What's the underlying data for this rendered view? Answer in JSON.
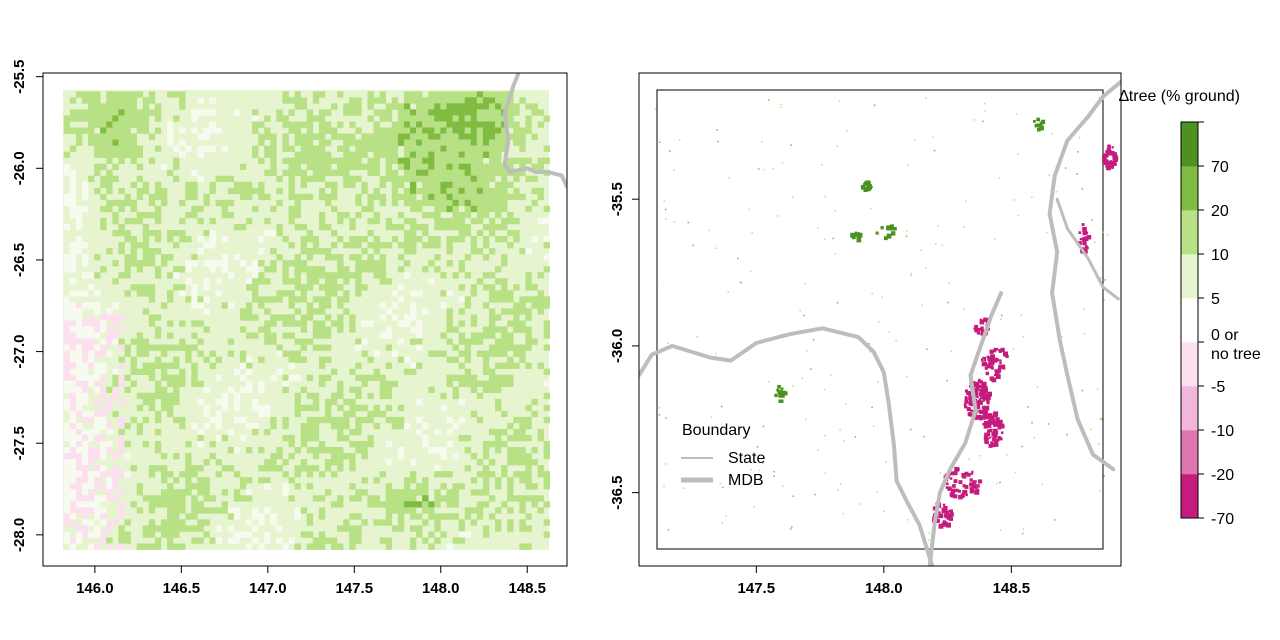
{
  "chart_data": [
    {
      "type": "heatmap",
      "title": "",
      "xlabel": "",
      "ylabel": "",
      "xlim": [
        145.7,
        148.73
      ],
      "ylim": [
        -28.17,
        -25.48
      ],
      "x_ticks": [
        146.0,
        146.5,
        147.0,
        147.5,
        148.0,
        148.5
      ],
      "x_tick_labels": [
        "146.0",
        "146.5",
        "147.0",
        "147.5",
        "148.0",
        "148.5"
      ],
      "y_ticks": [
        -25.5,
        -26.0,
        -26.5,
        -27.0,
        -27.5,
        -28.0
      ],
      "y_tick_labels": [
        "-25.5",
        "-26.0",
        "-26.5",
        "-27.0",
        "-27.5",
        "-28.0"
      ],
      "raster_extent": {
        "x": [
          145.82,
          148.63
        ],
        "y": [
          -28.08,
          -25.58
        ]
      },
      "dominant_classes": [
        "0 or no tree",
        "0 to 5",
        "5 to 10",
        "10 to 20",
        "20 to 70"
      ],
      "boundaries": {
        "State": [
          [
            148.45,
            -25.48
          ],
          [
            148.42,
            -25.55
          ],
          [
            148.37,
            -25.7
          ],
          [
            148.39,
            -25.85
          ],
          [
            148.37,
            -25.98
          ],
          [
            148.4,
            -26.02
          ],
          [
            148.45,
            -26.01
          ],
          [
            148.5,
            -26.0
          ],
          [
            148.55,
            -26.02
          ],
          [
            148.62,
            -26.02
          ],
          [
            148.7,
            -26.04
          ],
          [
            148.73,
            -26.1
          ]
        ]
      }
    },
    {
      "type": "heatmap",
      "title": "",
      "xlabel": "",
      "ylabel": "",
      "xlim": [
        147.04,
        148.93
      ],
      "ylim": [
        -36.75,
        -35.07
      ],
      "x_ticks": [
        147.5,
        148.0,
        148.5
      ],
      "x_tick_labels": [
        "147.5",
        "148.0",
        "148.5"
      ],
      "y_ticks": [
        -35.5,
        -36.0,
        -36.5
      ],
      "y_tick_labels": [
        "-35.5",
        "-36.0",
        "-36.5"
      ],
      "raster_extent": {
        "x": [
          147.1,
          148.88
        ],
        "y": [
          -36.66,
          -35.15
        ]
      },
      "boundaries": {
        "State": [
          [
            147.04,
            -36.14
          ],
          [
            147.1,
            -36.07
          ],
          [
            147.2,
            -36.03
          ],
          [
            147.3,
            -36.05
          ],
          [
            147.4,
            -36.05
          ],
          [
            147.5,
            -36.0
          ],
          [
            147.6,
            -35.99
          ],
          [
            147.7,
            -35.95
          ],
          [
            147.8,
            -35.93
          ],
          [
            147.9,
            -35.97
          ],
          [
            147.99,
            -36.04
          ],
          [
            148.0,
            -36.15
          ],
          [
            148.04,
            -36.27
          ],
          [
            148.05,
            -36.4
          ],
          [
            148.09,
            -36.5
          ],
          [
            148.12,
            -36.57
          ],
          [
            148.18,
            -36.65
          ],
          [
            148.2,
            -36.75
          ]
        ],
        "MDB": [
          [
            147.04,
            -36.1
          ],
          [
            147.09,
            -36.03
          ],
          [
            147.17,
            -36.0
          ],
          [
            147.32,
            -36.04
          ],
          [
            147.4,
            -36.05
          ],
          [
            147.5,
            -35.99
          ],
          [
            147.63,
            -35.96
          ],
          [
            147.76,
            -35.94
          ],
          [
            147.9,
            -35.97
          ],
          [
            147.96,
            -36.02
          ],
          [
            148.0,
            -36.09
          ],
          [
            148.02,
            -36.2
          ],
          [
            148.04,
            -36.34
          ],
          [
            148.05,
            -36.46
          ],
          [
            148.09,
            -36.53
          ],
          [
            148.14,
            -36.61
          ],
          [
            148.19,
            -36.75
          ]
        ],
        "MDB_east": [
          [
            148.93,
            -35.1
          ],
          [
            148.86,
            -35.15
          ],
          [
            148.8,
            -35.22
          ],
          [
            148.72,
            -35.3
          ],
          [
            148.67,
            -35.42
          ],
          [
            148.65,
            -35.55
          ],
          [
            148.68,
            -35.68
          ],
          [
            148.66,
            -35.82
          ],
          [
            148.69,
            -35.98
          ],
          [
            148.72,
            -36.1
          ],
          [
            148.76,
            -36.25
          ],
          [
            148.82,
            -36.37
          ],
          [
            148.9,
            -36.42
          ]
        ],
        "State_inner": [
          [
            148.46,
            -35.82
          ],
          [
            148.42,
            -35.9
          ],
          [
            148.38,
            -36.0
          ],
          [
            148.34,
            -36.1
          ],
          [
            148.36,
            -36.22
          ],
          [
            148.32,
            -36.33
          ],
          [
            148.26,
            -36.42
          ],
          [
            148.22,
            -36.5
          ],
          [
            148.2,
            -36.6
          ],
          [
            148.18,
            -36.75
          ]
        ],
        "State_east": [
          [
            148.68,
            -35.5
          ],
          [
            148.72,
            -35.6
          ],
          [
            148.8,
            -35.7
          ],
          [
            148.86,
            -35.8
          ],
          [
            148.92,
            -35.84
          ]
        ]
      }
    }
  ],
  "legend": {
    "title": "∆tree (% ground)",
    "colors": [
      "#c51b7d",
      "#de77ae",
      "#f1b6da",
      "#fde0ef",
      "#ffffff",
      "#e6f5d0",
      "#b8e186",
      "#7fbc41",
      "#4d9221"
    ],
    "labels": [
      "-70",
      "-20",
      "-10",
      "-5",
      "0 or",
      "no tree",
      "5",
      "10",
      "20",
      "70"
    ]
  },
  "boundary_legend": {
    "title": "Boundary",
    "items": [
      {
        "label": "State",
        "color": "#bdbdbd"
      },
      {
        "label": "MDB",
        "color": "#bdbdbd"
      }
    ]
  }
}
